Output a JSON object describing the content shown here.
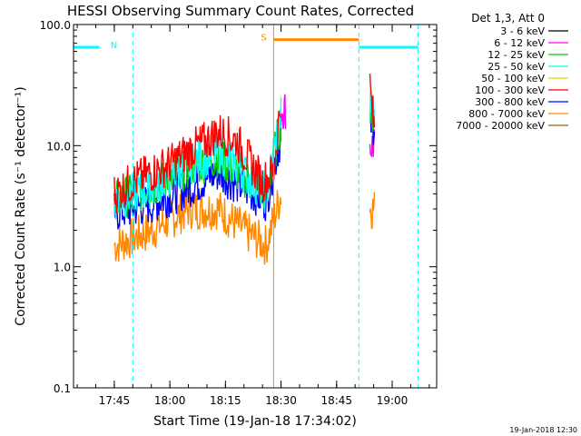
{
  "chart_data": {
    "type": "line",
    "title": "HESSI Observing Summary Count Rates, Corrected",
    "xlabel": "Start Time (19-Jan-18 17:34:02)",
    "ylabel": "Corrected Count Rate (s⁻¹ detector⁻¹)",
    "yscale": "log",
    "ylim": [
      0.1,
      100.0
    ],
    "xlim": [
      "17:34",
      "19:12"
    ],
    "x_ticks": [
      "17:45",
      "18:00",
      "18:15",
      "18:30",
      "18:45",
      "19:00"
    ],
    "y_ticks": [
      "0.1",
      "1.0",
      "10.0",
      "100.0"
    ],
    "legend_title": "Det 1,3, Att 0",
    "legend": [
      {
        "label": "3 - 6 keV",
        "color": "#000000"
      },
      {
        "label": "6 - 12 keV",
        "color": "#ff00ff"
      },
      {
        "label": "12 - 25 keV",
        "color": "#00cc00"
      },
      {
        "label": "25 - 50 keV",
        "color": "#00ffff"
      },
      {
        "label": "50 - 100 keV",
        "color": "#ffcc00"
      },
      {
        "label": "100 - 300 keV",
        "color": "#ff0000"
      },
      {
        "label": "300 - 800 keV",
        "color": "#0000ff"
      },
      {
        "label": "800 - 7000 keV",
        "color": "#ff8800"
      },
      {
        "label": "7000 - 20000 keV",
        "color": "#996600"
      }
    ],
    "legend_placement": "right",
    "series": [
      {
        "name": "100 - 300 keV",
        "color": "#ff0000",
        "points": [
          [
            "17:45",
            4
          ],
          [
            "17:50",
            5
          ],
          [
            "17:55",
            6
          ],
          [
            "18:00",
            7
          ],
          [
            "18:05",
            9
          ],
          [
            "18:10",
            11
          ],
          [
            "18:13",
            13
          ],
          [
            "18:18",
            11
          ],
          [
            "18:22",
            7
          ],
          [
            "18:25",
            5
          ],
          [
            "18:28",
            6
          ],
          [
            "18:30",
            25
          ],
          [
            "18:54",
            30
          ],
          [
            "18:55",
            15
          ]
        ]
      },
      {
        "name": "25 - 50 keV",
        "color": "#00ffff",
        "points": [
          [
            "17:45",
            3.5
          ],
          [
            "17:55",
            4.5
          ],
          [
            "18:05",
            7
          ],
          [
            "18:13",
            9
          ],
          [
            "18:20",
            6
          ],
          [
            "18:26",
            4
          ],
          [
            "18:30",
            18
          ],
          [
            "18:54",
            20
          ]
        ]
      },
      {
        "name": "12 - 25 keV",
        "color": "#00cc00",
        "points": [
          [
            "17:45",
            3.5
          ],
          [
            "17:55",
            4.5
          ],
          [
            "18:05",
            6.5
          ],
          [
            "18:13",
            8
          ],
          [
            "18:20",
            5.5
          ],
          [
            "18:26",
            4
          ],
          [
            "18:30",
            16
          ],
          [
            "18:54",
            18
          ]
        ]
      },
      {
        "name": "300 - 800 keV",
        "color": "#0000ff",
        "points": [
          [
            "17:45",
            2.8
          ],
          [
            "17:55",
            3.3
          ],
          [
            "18:05",
            4.5
          ],
          [
            "18:13",
            6
          ],
          [
            "18:20",
            4.5
          ],
          [
            "18:26",
            3.5
          ],
          [
            "18:30",
            12
          ],
          [
            "18:54",
            15
          ]
        ]
      },
      {
        "name": "6 - 12 keV",
        "color": "#ff00ff",
        "points": [
          [
            "18:30",
            20
          ],
          [
            "18:54",
            10
          ]
        ]
      },
      {
        "name": "800 - 7000 keV",
        "color": "#ff8800",
        "points": [
          [
            "17:45",
            1.5
          ],
          [
            "17:55",
            2
          ],
          [
            "18:05",
            3
          ],
          [
            "18:13",
            3
          ],
          [
            "18:20",
            2
          ],
          [
            "18:26",
            1.5
          ],
          [
            "18:30",
            4
          ],
          [
            "18:54",
            3
          ]
        ]
      }
    ],
    "markers": [
      {
        "label": "N",
        "type": "night",
        "start": "17:34",
        "end": "17:41",
        "value": 65,
        "color": "#00ffff"
      },
      {
        "label": "",
        "type": "night",
        "start": "18:51",
        "end": "19:07",
        "value": 65,
        "color": "#00ffff"
      },
      {
        "label": "S",
        "type": "saa",
        "start": "18:28",
        "end": "18:51",
        "value": 75,
        "color": "#ff8800"
      }
    ],
    "vertical_lines": [
      {
        "at": "17:34",
        "color": "#00ffff",
        "style": "solid"
      },
      {
        "at": "17:50",
        "color": "#00ffff",
        "style": "dashed"
      },
      {
        "at": "18:28",
        "color": "#ff8800",
        "style": "solid"
      },
      {
        "at": "18:51",
        "color": "#00ffff",
        "style": "dashed"
      },
      {
        "at": "19:07",
        "color": "#00ffff",
        "style": "dashed"
      }
    ]
  },
  "footer": {
    "timestamp": "19-Jan-2018 12:30"
  }
}
